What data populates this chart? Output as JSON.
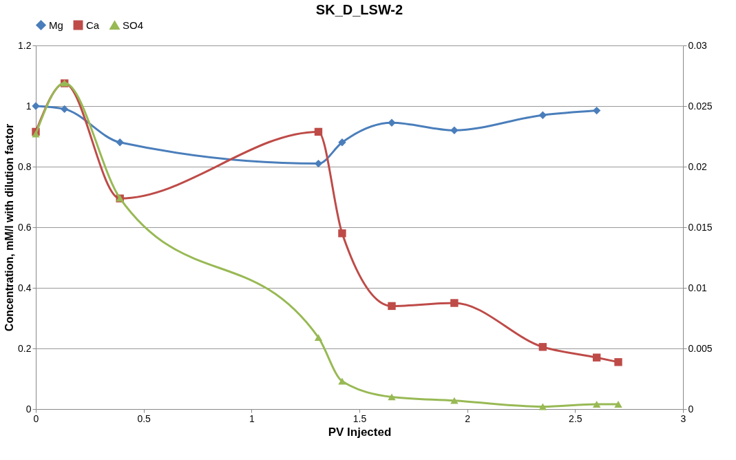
{
  "chart_data": {
    "type": "line",
    "title": "SK_D_LSW-2",
    "xlabel": "PV Injected",
    "ylabel": "Concentration, mM/l with dilution factor",
    "xlim": [
      0,
      3
    ],
    "xticks": [
      0,
      0.5,
      1,
      1.5,
      2,
      2.5,
      3
    ],
    "ylim": [
      0,
      1.2
    ],
    "yticks": [
      0,
      0.2,
      0.4,
      0.6,
      0.8,
      1,
      1.2
    ],
    "y2lim": [
      0,
      0.03
    ],
    "y2ticks": [
      0,
      0.005,
      0.01,
      0.015,
      0.02,
      0.025,
      0.03
    ],
    "grid": "y",
    "legend": "top",
    "series": [
      {
        "name": "Mg",
        "color": "#4a7ebb",
        "marker": "diamond",
        "x": [
          0,
          0.133,
          0.39,
          1.31,
          1.42,
          1.65,
          1.94,
          2.35,
          2.6
        ],
        "values": [
          1.0,
          0.99,
          0.88,
          0.81,
          0.88,
          0.945,
          0.92,
          0.97,
          0.985
        ]
      },
      {
        "name": "Ca",
        "color": "#be4b48",
        "marker": "square",
        "x": [
          0,
          0.133,
          0.39,
          1.31,
          1.42,
          1.65,
          1.94,
          2.35,
          2.6,
          2.7
        ],
        "values": [
          0.915,
          1.075,
          0.695,
          0.915,
          0.58,
          0.34,
          0.35,
          0.205,
          0.17,
          0.155
        ]
      },
      {
        "name": "SO4",
        "color": "#98b954",
        "marker": "triangle",
        "axis": "y2",
        "x": [
          0,
          0.133,
          0.39,
          1.31,
          1.42,
          1.65,
          1.94,
          2.35,
          2.6,
          2.7
        ],
        "values": [
          0.0227,
          0.0269,
          0.0174,
          0.0059,
          0.0023,
          0.001,
          0.0007,
          0.0002,
          0.0004,
          0.0004
        ]
      }
    ]
  }
}
